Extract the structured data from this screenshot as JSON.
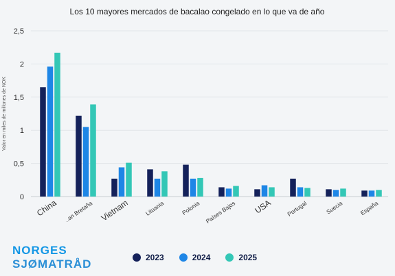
{
  "chart_data": {
    "type": "bar",
    "title": "Los 10 mayores mercados de bacalao congelado en lo que va de año",
    "ylabel": "Valor en miles de millones de NOK",
    "ylim": [
      0,
      2.5
    ],
    "yticks": [
      "0",
      "0,5",
      "1",
      "1,5",
      "2",
      "2,5"
    ],
    "grid": true,
    "legend_position": "bottom",
    "categories": [
      "China",
      "Gran Bretaña",
      "Vietnam",
      "Lituania",
      "Polonia",
      "Países Bajos",
      "USA",
      "Portugal",
      "Suecia",
      "España"
    ],
    "category_display": [
      "China",
      "..an Bretaña",
      "Vietnam",
      "Lituania",
      "Polonia",
      "Países Bajos",
      "USA",
      "Portugal",
      "Suecia",
      "España"
    ],
    "series": [
      {
        "name": "2023",
        "color": "#14215a",
        "values": [
          1.65,
          1.22,
          0.27,
          0.41,
          0.48,
          0.14,
          0.11,
          0.27,
          0.11,
          0.09
        ]
      },
      {
        "name": "2024",
        "color": "#1e86e6",
        "values": [
          1.96,
          1.05,
          0.44,
          0.27,
          0.27,
          0.12,
          0.17,
          0.14,
          0.1,
          0.09
        ]
      },
      {
        "name": "2025",
        "color": "#33c7b6",
        "values": [
          2.17,
          1.39,
          0.51,
          0.38,
          0.28,
          0.16,
          0.14,
          0.13,
          0.12,
          0.1
        ]
      }
    ]
  },
  "brand": {
    "line1": "NORGES",
    "line2": "SJØMATRÅD"
  },
  "legend": [
    {
      "label": "2023",
      "color": "#14215a"
    },
    {
      "label": "2024",
      "color": "#1e86e6"
    },
    {
      "label": "2025",
      "color": "#33c7b6"
    }
  ]
}
